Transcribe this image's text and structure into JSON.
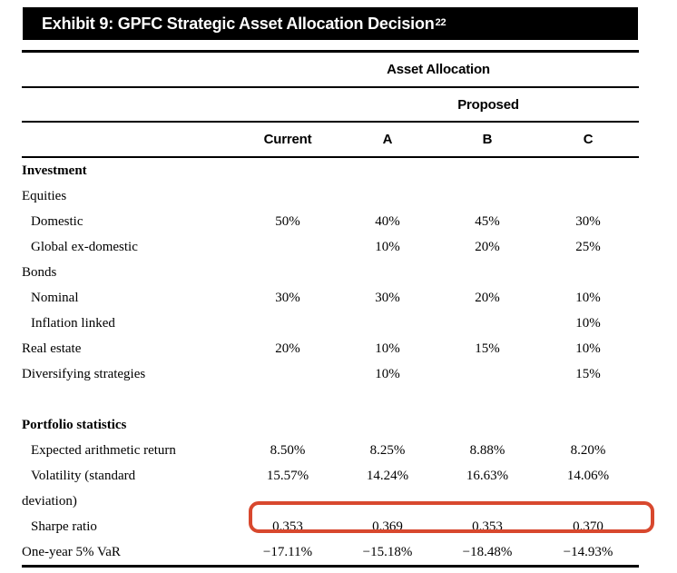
{
  "exhibit": {
    "title": "Exhibit 9: GPFC Strategic Asset Allocation Decision",
    "footnote_ref": "22"
  },
  "table": {
    "spanner1": "Asset Allocation",
    "spanner2": "Proposed",
    "columns": [
      "Current",
      "A",
      "B",
      "C"
    ],
    "rows": [
      {
        "label": "Investment",
        "style": "section",
        "values": [
          "",
          "",
          "",
          ""
        ]
      },
      {
        "label": "Equities",
        "style": "plain",
        "values": [
          "",
          "",
          "",
          ""
        ]
      },
      {
        "label": "Domestic",
        "style": "indent",
        "values": [
          "50%",
          "40%",
          "45%",
          "30%"
        ]
      },
      {
        "label": "Global ex-domestic",
        "style": "indent",
        "values": [
          "",
          "10%",
          "20%",
          "25%"
        ]
      },
      {
        "label": "Bonds",
        "style": "plain",
        "values": [
          "",
          "",
          "",
          ""
        ]
      },
      {
        "label": "Nominal",
        "style": "indent",
        "values": [
          "30%",
          "30%",
          "20%",
          "10%"
        ]
      },
      {
        "label": "Inflation linked",
        "style": "indent",
        "values": [
          "",
          "",
          "",
          "10%"
        ]
      },
      {
        "label": "Real estate",
        "style": "plain",
        "values": [
          "20%",
          "10%",
          "15%",
          "10%"
        ]
      },
      {
        "label": "Diversifying strategies",
        "style": "plain",
        "values": [
          "",
          "10%",
          "",
          "15%"
        ]
      },
      {
        "label": "",
        "style": "spacer",
        "values": [
          "",
          "",
          "",
          ""
        ]
      },
      {
        "label": "Portfolio statistics",
        "style": "section",
        "values": [
          "",
          "",
          "",
          ""
        ]
      },
      {
        "label": "Expected arithmetic return",
        "style": "indent",
        "values": [
          "8.50%",
          "8.25%",
          "8.88%",
          "8.20%"
        ]
      },
      {
        "label": "Volatility (standard deviation)",
        "style": "indent wrap",
        "values": [
          "15.57%",
          "14.24%",
          "16.63%",
          "14.06%"
        ]
      },
      {
        "label": "Sharpe ratio",
        "style": "indent",
        "values": [
          "0.353",
          "0.369",
          "0.353",
          "0.370"
        ]
      },
      {
        "label": "One-year 5% VaR",
        "style": "plain",
        "values": [
          "−17.11%",
          "−15.18%",
          "−18.48%",
          "−14.93%"
        ]
      }
    ],
    "highlight": {
      "row_label": "Sharpe ratio",
      "color": "#d8482e"
    },
    "colors": {
      "title_bar_bg": "#000000",
      "title_bar_text": "#ffffff",
      "rule": "#000000"
    }
  }
}
